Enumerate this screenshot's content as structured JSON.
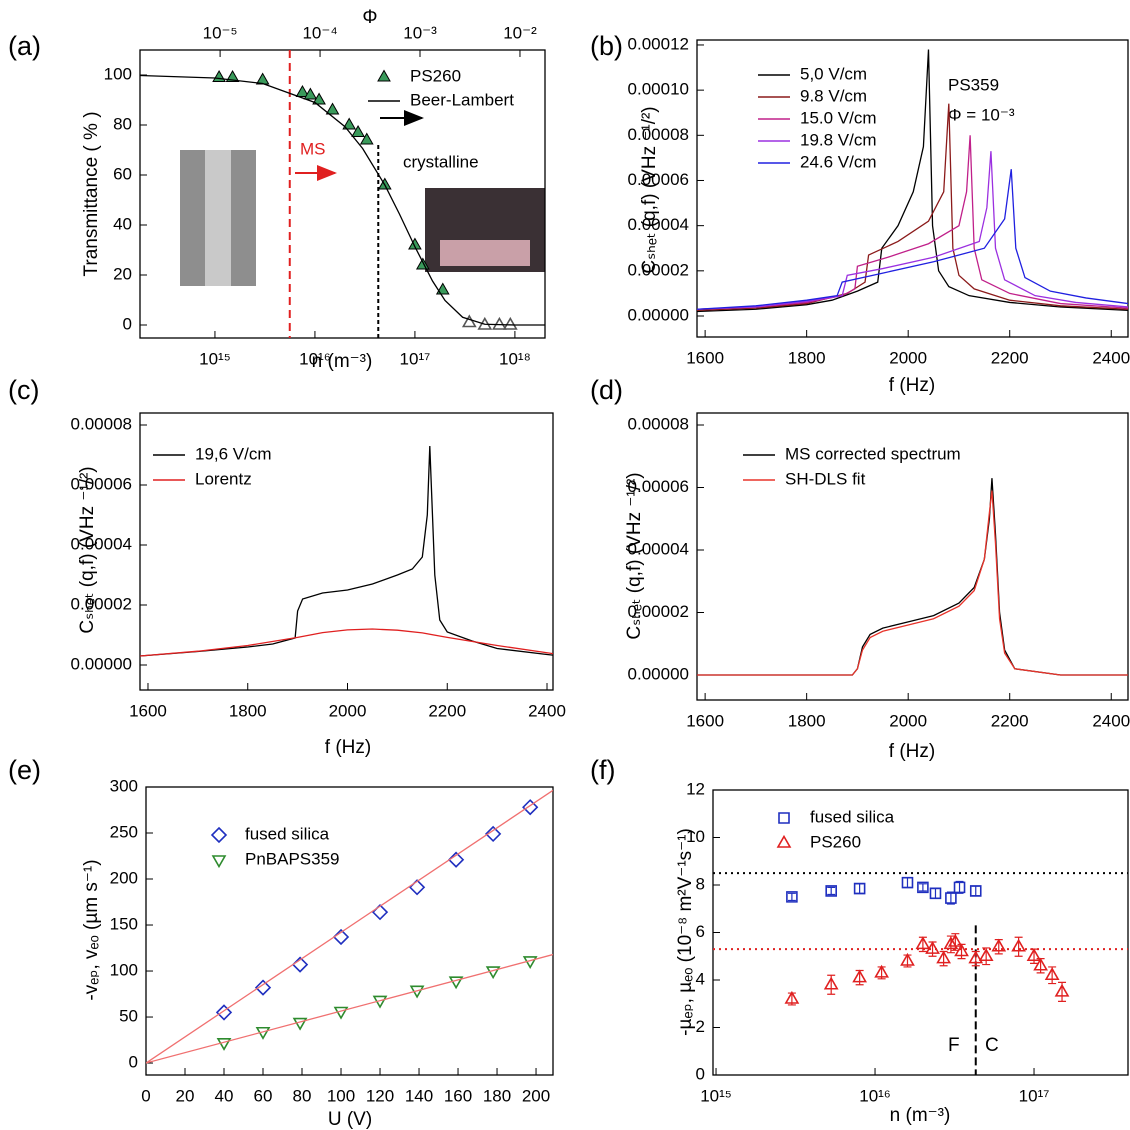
{
  "chart_data": [
    {
      "type": "scatter",
      "label": "(a)",
      "xlabel": "n (m⁻³)",
      "ylabel": "Transmittance ( % )",
      "x2label": "Φ",
      "xlog": true,
      "x2log": true,
      "xlim": [
        178000000000000.0,
        2e+18
      ],
      "xticks": [
        {
          "value": 1000000000000000.0,
          "label": "10¹⁵"
        },
        {
          "value": 1e+16,
          "label": "10¹⁶"
        },
        {
          "value": 1e+17,
          "label": "10¹⁷"
        },
        {
          "value": 1e+18,
          "label": "10¹⁸"
        }
      ],
      "x2lim": [
        1.58e-06,
        0.0178
      ],
      "x2ticks": [
        {
          "value": 1e-05,
          "label": "10⁻⁵"
        },
        {
          "value": 0.0001,
          "label": "10⁻⁴"
        },
        {
          "value": 0.001,
          "label": "10⁻³"
        },
        {
          "value": 0.01,
          "label": "10⁻²"
        }
      ],
      "ylim": [
        -5.2,
        110
      ],
      "yticks": [
        0,
        20,
        40,
        60,
        80,
        100
      ],
      "annotations": [
        "MS",
        "crystalline"
      ],
      "vlines": [
        {
          "value": 5600000000000000.0,
          "color": "#e02020",
          "dash": "8,5"
        },
        {
          "value": 4.3e+16,
          "color": "#000000",
          "dash": "4,3",
          "ymax": 72
        }
      ],
      "series": [
        {
          "name": "PS260",
          "marker": "triangle-up",
          "filled": true,
          "color": "#3a9a5b",
          "x": [
            1100000000000000.0,
            1500000000000000.0,
            3000000000000000.0,
            7500000000000000.0,
            9000000000000000.0,
            1.1e+16,
            1.5e+16,
            2.2e+16,
            2.7e+16,
            3.3e+16,
            5e+16,
            1e+17,
            1.2e+17,
            1.9e+17
          ],
          "values": [
            99,
            99,
            98,
            93,
            92,
            90,
            86,
            80,
            77,
            74,
            56,
            32,
            24,
            14
          ]
        },
        {
          "marker": "triangle-up",
          "filled": false,
          "color": "#555555",
          "x": [
            3.5e+17,
            5e+17,
            7e+17,
            9e+17
          ],
          "values": [
            1,
            0,
            0,
            0
          ]
        },
        {
          "name": "Beer-Lambert",
          "mode": "line",
          "color": "#000000",
          "x": [
            178000000000000.0,
            1000000000000000.0,
            3000000000000000.0,
            1e+16,
            2e+16,
            3e+16,
            5e+16,
            7e+16,
            1e+17,
            1.5e+17,
            2e+17,
            3e+17,
            5e+17,
            1e+18,
            2e+18
          ],
          "values": [
            99.8,
            98.8,
            96.6,
            89.0,
            79.3,
            70.6,
            56.0,
            44.4,
            31.3,
            17.6,
            9.8,
            3.1,
            0.3,
            0,
            0
          ]
        }
      ]
    },
    {
      "type": "line",
      "label": "(b)",
      "xlabel": "f (Hz)",
      "ylabel": "Cₛₕₑₜ (q,f) (VHz ⁻¹/²)",
      "xlim": [
        1584,
        2433
      ],
      "xticks": [
        1600,
        1800,
        2000,
        2200,
        2400
      ],
      "ylim": [
        -9.3e-06,
        0.0001222
      ],
      "yticks": [
        {
          "value": 0,
          "label": "0.00000"
        },
        2e-05,
        4e-05,
        6e-05,
        8e-05,
        {
          "value": 0.0001,
          "label": "0.00010"
        },
        0.00012
      ],
      "annotations": [
        "PS359",
        "Φ = 10⁻³"
      ],
      "series": [
        {
          "name": "5,0 V/cm",
          "mode": "line",
          "color": "#000000",
          "x": [
            1584,
            1700,
            1800,
            1850,
            1900,
            1940,
            1948,
            1980,
            2010,
            2030,
            2040,
            2048,
            2060,
            2080,
            2120,
            2200,
            2300,
            2433
          ],
          "values": [
            2e-06,
            3e-06,
            5e-06,
            7e-06,
            1.1e-05,
            1.5e-05,
            3e-05,
            4e-05,
            5.5e-05,
            7.5e-05,
            0.000118,
            4e-05,
            2e-05,
            1.3e-05,
            9e-06,
            6e-06,
            4e-06,
            2.5e-06
          ]
        },
        {
          "name": "9.8 V/cm",
          "mode": "line",
          "color": "#8b1a1a",
          "x": [
            1584,
            1700,
            1800,
            1880,
            1915,
            1922,
            1980,
            2040,
            2070,
            2080,
            2088,
            2100,
            2130,
            2200,
            2300,
            2433
          ],
          "values": [
            2.5e-06,
            3.5e-06,
            5.5e-06,
            1e-05,
            1.5e-05,
            2.7e-05,
            3.3e-05,
            4.2e-05,
            5.5e-05,
            9.4e-05,
            3e-05,
            1.8e-05,
            1.2e-05,
            7e-06,
            4.5e-06,
            3e-06
          ]
        },
        {
          "name": "15.0 V/cm",
          "mode": "line",
          "color": "#c0208a",
          "x": [
            1584,
            1700,
            1800,
            1870,
            1895,
            1900,
            1960,
            2040,
            2100,
            2115,
            2122,
            2130,
            2145,
            2200,
            2300,
            2433
          ],
          "values": [
            3e-06,
            4e-06,
            6e-06,
            9e-06,
            1.2e-05,
            2.2e-05,
            2.6e-05,
            3.2e-05,
            4e-05,
            5.5e-05,
            8e-05,
            3e-05,
            1.6e-05,
            1e-05,
            5.5e-06,
            3.5e-06
          ]
        },
        {
          "name": "19.8 V/cm",
          "mode": "line",
          "color": "#9b30e0",
          "x": [
            1584,
            1700,
            1800,
            1870,
            1880,
            1950,
            2050,
            2140,
            2155,
            2163,
            2172,
            2190,
            2250,
            2330,
            2433
          ],
          "values": [
            3e-06,
            4e-06,
            6.5e-06,
            9e-06,
            1.8e-05,
            2.1e-05,
            2.6e-05,
            3.3e-05,
            4.8e-05,
            7.3e-05,
            3e-05,
            1.6e-05,
            9e-06,
            6e-06,
            4e-06
          ]
        },
        {
          "name": "24.6 V/cm",
          "mode": "line",
          "color": "#2020e0",
          "x": [
            1584,
            1700,
            1800,
            1860,
            1870,
            1950,
            2050,
            2150,
            2190,
            2203,
            2212,
            2230,
            2280,
            2350,
            2433
          ],
          "values": [
            3e-06,
            4.5e-06,
            7e-06,
            9e-06,
            1.5e-05,
            1.9e-05,
            2.4e-05,
            3e-05,
            4.3e-05,
            6.5e-05,
            3e-05,
            1.7e-05,
            1.1e-05,
            8e-06,
            5.5e-06
          ]
        }
      ]
    },
    {
      "type": "line",
      "label": "(c)",
      "xlabel": "f (Hz)",
      "ylabel": "Cₛₕₑₜ (q,f) (VHz ⁻¹/²)",
      "xlim": [
        1584,
        2412
      ],
      "xticks": [
        1600,
        1800,
        2000,
        2200,
        2400
      ],
      "ylim": [
        -8.33e-06,
        8.4e-05
      ],
      "yticks": [
        {
          "value": 0,
          "label": "0.00000"
        },
        2e-05,
        4e-05,
        6e-05,
        8e-05
      ],
      "series": [
        {
          "name": "19,6 V/cm",
          "mode": "line",
          "color": "#000000",
          "x": [
            1584,
            1700,
            1800,
            1850,
            1895,
            1900,
            1910,
            1950,
            2000,
            2050,
            2100,
            2130,
            2150,
            2160,
            2165,
            2175,
            2185,
            2200,
            2250,
            2300,
            2400,
            2412
          ],
          "values": [
            3e-06,
            4.5e-06,
            6e-06,
            7e-06,
            9e-06,
            1.8e-05,
            2.2e-05,
            2.4e-05,
            2.5e-05,
            2.7e-05,
            3e-05,
            3.2e-05,
            3.6e-05,
            5e-05,
            7.3e-05,
            3e-05,
            1.5e-05,
            1.1e-05,
            8e-06,
            5.5e-06,
            3.5e-06,
            3.3e-06
          ]
        },
        {
          "name": "Lorentz",
          "mode": "line",
          "color": "#e02020",
          "x": [
            1584,
            1700,
            1800,
            1900,
            1950,
            2000,
            2050,
            2100,
            2150,
            2200,
            2300,
            2412
          ],
          "values": [
            3e-06,
            4.6e-06,
            6.5e-06,
            9.2e-06,
            1.08e-05,
            1.17e-05,
            1.2e-05,
            1.16e-05,
            1.07e-05,
            9.2e-06,
            6.5e-06,
            3.8e-06
          ]
        }
      ]
    },
    {
      "type": "line",
      "label": "(d)",
      "xlabel": "f (Hz)",
      "ylabel": "Cₛₕₑₜ (q,f) (VHz ⁻¹/²)",
      "xlim": [
        1584,
        2433
      ],
      "xticks": [
        1600,
        1800,
        2000,
        2200,
        2400
      ],
      "ylim": [
        -8e-06,
        8.384e-05
      ],
      "yticks": [
        {
          "value": 0,
          "label": "0.00000"
        },
        2e-05,
        4e-05,
        6e-05,
        8e-05
      ],
      "series": [
        {
          "name": "MS corrected spectrum",
          "mode": "line",
          "color": "#000000",
          "x": [
            1584,
            1890,
            1900,
            1910,
            1925,
            1950,
            2000,
            2050,
            2100,
            2130,
            2150,
            2160,
            2165,
            2172,
            2180,
            2190,
            2210,
            2300,
            2433
          ],
          "values": [
            0,
            0,
            2e-06,
            9e-06,
            1.3e-05,
            1.5e-05,
            1.7e-05,
            1.9e-05,
            2.3e-05,
            2.8e-05,
            3.7e-05,
            5e-05,
            6.3e-05,
            4.5e-05,
            2e-05,
            8e-06,
            2e-06,
            0,
            0
          ]
        },
        {
          "name": "SH-DLS fit",
          "mode": "line",
          "color": "#e8332a",
          "x": [
            1584,
            1890,
            1900,
            1910,
            1925,
            1950,
            2000,
            2050,
            2100,
            2130,
            2150,
            2160,
            2165,
            2172,
            2180,
            2190,
            2210,
            2300,
            2433
          ],
          "values": [
            0,
            0,
            2e-06,
            8e-06,
            1.2e-05,
            1.4e-05,
            1.6e-05,
            1.8e-05,
            2.2e-05,
            2.7e-05,
            3.7e-05,
            5.2e-05,
            5.9e-05,
            4.2e-05,
            1.8e-05,
            7e-06,
            2e-06,
            0,
            0
          ]
        }
      ]
    },
    {
      "type": "scatter",
      "label": "(e)",
      "xlabel": "U (V)",
      "ylabel": "-vₑₚ, vₑₒ (µm s⁻¹)",
      "xlim": [
        0,
        208.7
      ],
      "xticks": [
        0,
        20,
        40,
        60,
        80,
        100,
        120,
        140,
        160,
        180,
        200
      ],
      "ylim": [
        -13,
        300
      ],
      "yticks": [
        0,
        50,
        100,
        150,
        200,
        250,
        300
      ],
      "series": [
        {
          "name": "fused silica",
          "marker": "diamond",
          "filled": false,
          "color": "#1f2fbf",
          "x": [
            40,
            60,
            79,
            100,
            120,
            139,
            159,
            178,
            197
          ],
          "values": [
            55,
            82,
            107,
            137,
            164,
            191,
            221,
            249,
            278
          ]
        },
        {
          "name": "PnBAPS359",
          "marker": "triangle-down",
          "filled": false,
          "color": "#2e8b2e",
          "x": [
            40,
            60,
            79,
            100,
            120,
            139,
            159,
            178,
            197
          ],
          "values": [
            22,
            34,
            44,
            56,
            68,
            79,
            89,
            100,
            111
          ]
        },
        {
          "mode": "line",
          "color": "#f07070",
          "x": [
            0,
            208.7
          ],
          "values": [
            0,
            296.4
          ]
        },
        {
          "mode": "line",
          "color": "#f07070",
          "x": [
            0,
            208.7
          ],
          "values": [
            0,
            117.9
          ]
        }
      ]
    },
    {
      "type": "scatter",
      "label": "(f)",
      "xlabel": "n (m⁻³)",
      "ylabel": "-µₑₚ, µₑₒ (10⁻⁸ m²V⁻¹s⁻¹)",
      "xlog": true,
      "xlim": [
        957000000000000.0,
        3.9e+17
      ],
      "xticks": [
        {
          "value": 1000000000000000.0,
          "label": "10¹⁵"
        },
        {
          "value": 1e+16,
          "label": "10¹⁶"
        },
        {
          "value": 1e+17,
          "label": "10¹⁷"
        }
      ],
      "ylim": [
        0,
        12
      ],
      "yticks": [
        0,
        2,
        4,
        6,
        8,
        10,
        12
      ],
      "annotations": [
        "F",
        "C"
      ],
      "hlines": [
        {
          "value": 8.5,
          "color": "#000000",
          "dash": "2,4"
        },
        {
          "value": 5.3,
          "color": "#e02020",
          "dash": "2,4"
        }
      ],
      "vlines": [
        {
          "value": 4.3e+16,
          "color": "#000000",
          "dash": "8,4",
          "ymax": 6.3
        }
      ],
      "series": [
        {
          "name": "fused silica",
          "marker": "square",
          "filled": false,
          "color": "#1f2fbf",
          "x": [
            3000000000000000.0,
            5300000000000000.0,
            8000000000000000.0,
            1.6e+16,
            2e+16,
            2.4e+16,
            3e+16,
            3.4e+16,
            4.3e+16
          ],
          "values": [
            7.5,
            7.75,
            7.85,
            8.1,
            7.9,
            7.65,
            7.45,
            7.9,
            7.75
          ],
          "errors": [
            0.15,
            0.15,
            0.2,
            0.2,
            0.15,
            0.2,
            0.25,
            0.25,
            0.2
          ]
        },
        {
          "name": "PS260",
          "marker": "triangle-up",
          "filled": false,
          "color": "#e02020",
          "x": [
            3000000000000000.0,
            5300000000000000.0,
            8000000000000000.0,
            1.1e+16,
            1.6e+16,
            2e+16,
            2.3e+16,
            2.7e+16,
            3e+16,
            3.2e+16,
            3.5e+16,
            4.3e+16,
            5e+16,
            6e+16,
            8e+16,
            1e+17,
            1.1e+17,
            1.3e+17,
            1.5e+17
          ],
          "values": [
            3.2,
            3.8,
            4.1,
            4.3,
            4.8,
            5.5,
            5.3,
            4.9,
            5.5,
            5.6,
            5.2,
            4.9,
            5.0,
            5.4,
            5.4,
            5.0,
            4.6,
            4.2,
            3.5
          ],
          "errors": [
            0.25,
            0.4,
            0.3,
            0.25,
            0.25,
            0.3,
            0.3,
            0.3,
            0.35,
            0.35,
            0.3,
            0.3,
            0.35,
            0.3,
            0.4,
            0.3,
            0.3,
            0.35,
            0.4
          ]
        }
      ]
    }
  ]
}
